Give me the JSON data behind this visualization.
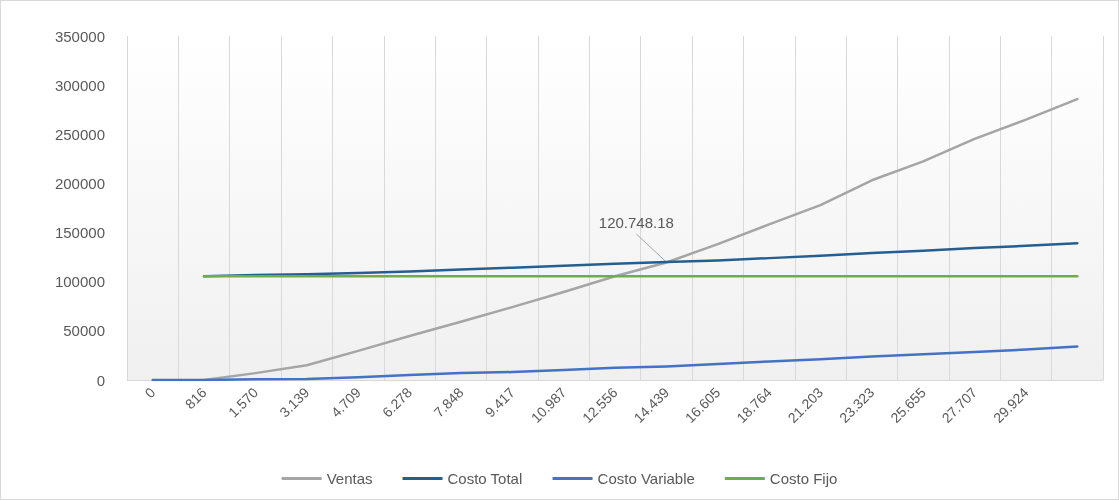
{
  "chart_data": {
    "type": "line",
    "categories": [
      "0",
      "816",
      "1.570",
      "3.139",
      "4.709",
      "6.278",
      "7.848",
      "9.417",
      "10.987",
      "12.556",
      "14.439",
      "16.605",
      "18.764",
      "21.203",
      "23.323",
      "25.655",
      "27.707",
      "29.924",
      null
    ],
    "series": [
      {
        "name": "Ventas",
        "color": "#a5a5a5",
        "values": [
          null,
          0,
          7000,
          15000,
          29600,
          44800,
          59300,
          74100,
          89600,
          105500,
          119600,
          138200,
          158400,
          178000,
          203200,
          222400,
          245400,
          264900,
          285800
        ]
      },
      {
        "name": "Costo Total",
        "color": "#255e91",
        "values": [
          null,
          105500,
          106900,
          107500,
          108900,
          110500,
          112500,
          114300,
          116300,
          118300,
          120000,
          121600,
          124000,
          126400,
          129100,
          131400,
          134200,
          136500,
          139200
        ]
      },
      {
        "name": "Costo Variable",
        "color": "#4472c4",
        "values": [
          0,
          0,
          700,
          1000,
          2700,
          5000,
          7000,
          8100,
          10100,
          12400,
          13800,
          16200,
          18900,
          21200,
          24000,
          26300,
          28600,
          31000,
          34100
        ]
      },
      {
        "name": "Costo Fijo",
        "color": "#70ad47",
        "values": [
          null,
          105500,
          105500,
          105500,
          105500,
          105500,
          105500,
          105500,
          105500,
          105500,
          105500,
          105500,
          105500,
          105500,
          105500,
          105500,
          105500,
          105500,
          105500
        ]
      }
    ],
    "ylim": [
      0,
      350000
    ],
    "yticks": [
      0,
      50000,
      100000,
      150000,
      200000,
      250000,
      300000,
      350000
    ],
    "annotations": [
      {
        "text": "120.748.18",
        "x": "14.439",
        "y": 120000
      }
    ],
    "grid": "x",
    "legend": "bottom",
    "marker": "none",
    "line_style": "solid"
  }
}
